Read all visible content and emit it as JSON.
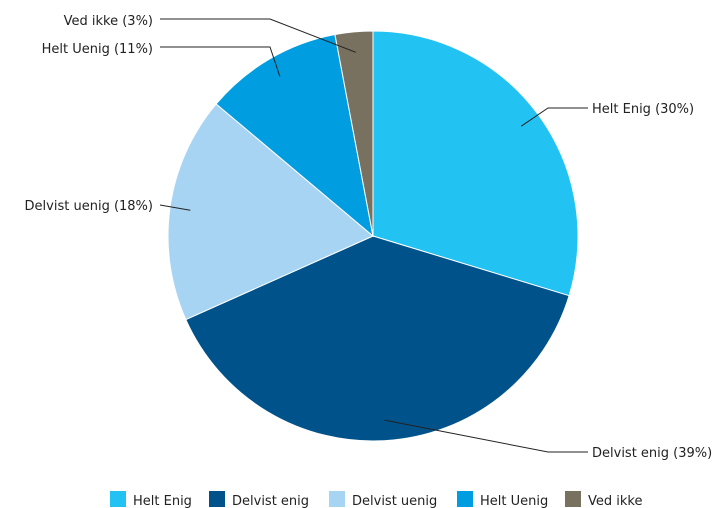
{
  "chart_data": {
    "type": "pie",
    "slices": [
      {
        "name": "Helt Enig",
        "value": 30,
        "label": "Helt Enig (30%)",
        "color": "#22c3f3"
      },
      {
        "name": "Delvist enig",
        "value": 39,
        "label": "Delvist enig (39%)",
        "color": "#00538a"
      },
      {
        "name": "Delvist uenig",
        "value": 18,
        "label": "Delvist uenig (18%)",
        "color": "#a8d4f4"
      },
      {
        "name": "Helt Uenig",
        "value": 11,
        "label": "Helt Uenig (11%)",
        "color": "#009de0"
      },
      {
        "name": "Ved ikke",
        "value": 3,
        "label": "Ved ikke (3%)",
        "color": "#787160"
      }
    ],
    "legend_position": "bottom"
  }
}
